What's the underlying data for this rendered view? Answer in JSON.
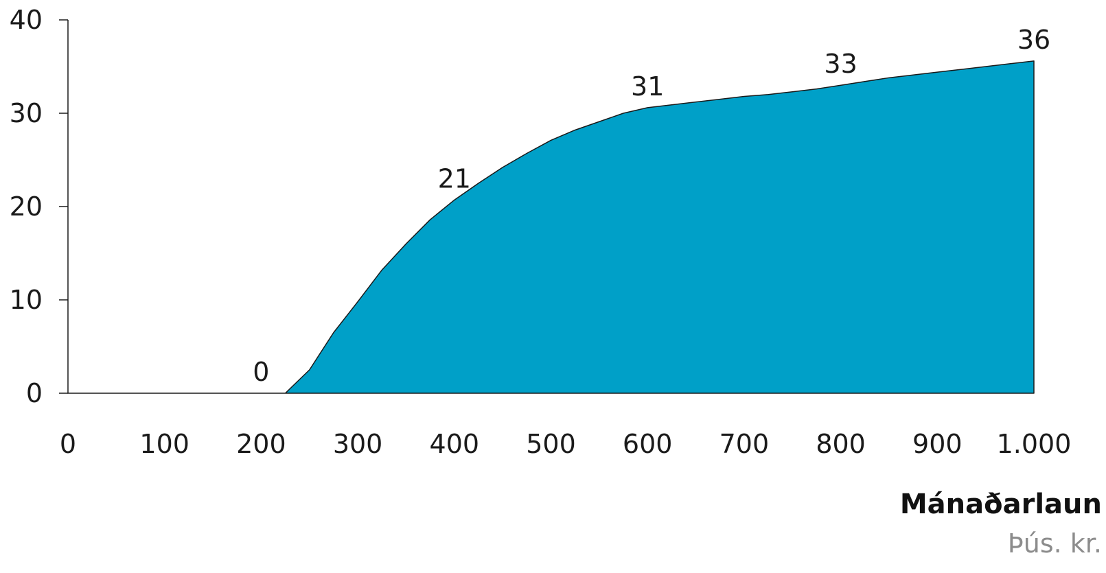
{
  "chart_data": {
    "type": "area",
    "xlabel": "Mánaðarlaun",
    "xunit": "Þús. kr.",
    "xlim": [
      0,
      1000
    ],
    "ylim": [
      0,
      40
    ],
    "x_ticks": [
      0,
      100,
      200,
      300,
      400,
      500,
      600,
      700,
      800,
      900,
      1000
    ],
    "x_tick_labels": [
      "0",
      "100",
      "200",
      "300",
      "400",
      "500",
      "600",
      "700",
      "800",
      "900",
      "1.000"
    ],
    "y_ticks": [
      0,
      10,
      20,
      30,
      40
    ],
    "y_tick_labels": [
      "0",
      "10",
      "20",
      "30",
      "40"
    ],
    "fill_color": "#00a0c8",
    "grid": false,
    "x": [
      0,
      100,
      200,
      225,
      250,
      275,
      300,
      325,
      350,
      375,
      400,
      425,
      450,
      475,
      500,
      525,
      550,
      575,
      600,
      625,
      650,
      675,
      700,
      725,
      750,
      775,
      800,
      825,
      850,
      875,
      900,
      925,
      950,
      975,
      1000
    ],
    "y": [
      0,
      0,
      0,
      0,
      2.5,
      6.5,
      9.8,
      13.2,
      16.0,
      18.6,
      20.7,
      22.5,
      24.2,
      25.7,
      27.1,
      28.2,
      29.1,
      30.0,
      30.6,
      30.9,
      31.2,
      31.5,
      31.8,
      32.0,
      32.3,
      32.6,
      33.0,
      33.4,
      33.8,
      34.1,
      34.4,
      34.7,
      35.0,
      35.3,
      35.6
    ],
    "annotations": [
      {
        "x": 200,
        "y": 0,
        "text": "0"
      },
      {
        "x": 400,
        "y": 20.7,
        "text": "21"
      },
      {
        "x": 600,
        "y": 30.6,
        "text": "31"
      },
      {
        "x": 800,
        "y": 33.0,
        "text": "33"
      },
      {
        "x": 1000,
        "y": 35.6,
        "text": "36"
      }
    ]
  }
}
